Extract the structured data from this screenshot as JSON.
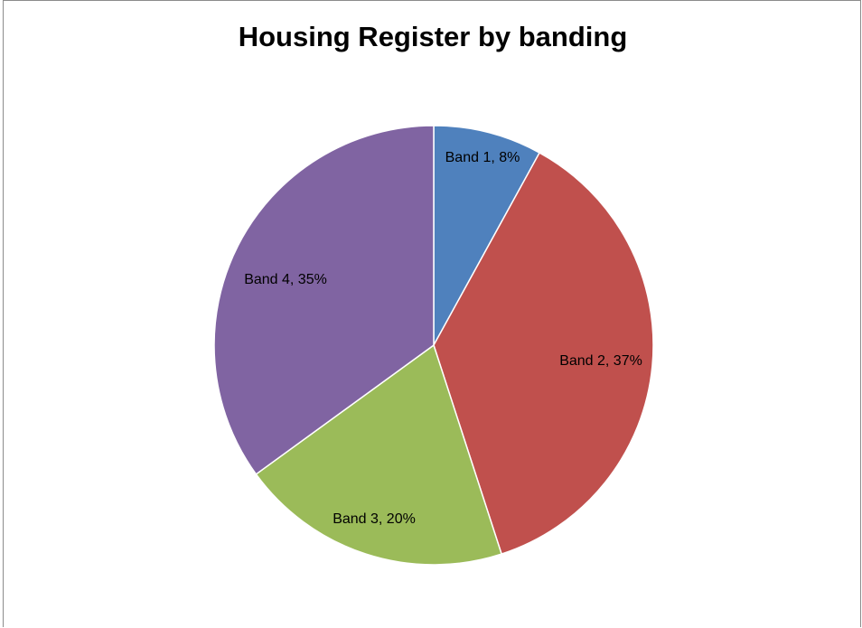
{
  "chart_data": {
    "type": "pie",
    "title": "Housing Register by banding",
    "categories": [
      "Band 1",
      "Band 2",
      "Band 3",
      "Band 4"
    ],
    "values": [
      8,
      37,
      20,
      35
    ],
    "value_format": "percent",
    "data_labels": [
      "Band 1, 8%",
      "Band 2, 37%",
      "Band 3, 20%",
      "Band 4, 35%"
    ],
    "colors": [
      "#4f81bd",
      "#c0504d",
      "#9bbb59",
      "#8064a2"
    ],
    "start_angle": "12 o'clock",
    "direction": "clockwise",
    "legend": "none"
  }
}
